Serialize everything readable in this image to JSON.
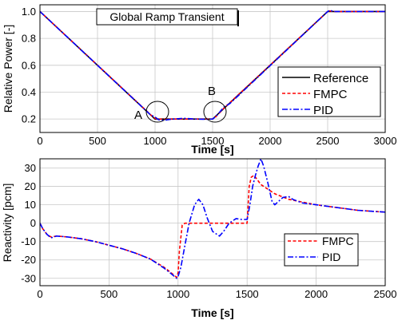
{
  "chart_data": [
    {
      "type": "line",
      "title": "Global Ramp Transient",
      "xlabel": "Time [s]",
      "ylabel": "Relative Power [-]",
      "xlim": [
        0,
        3000
      ],
      "ylim": [
        0.1,
        1.05
      ],
      "xticks": [
        0,
        500,
        1000,
        1500,
        2000,
        2500,
        3000
      ],
      "yticks": [
        0.2,
        0.4,
        0.6,
        0.8,
        1.0
      ],
      "ytick_labels": [
        "0.2",
        "0.4",
        "0.6",
        "0.8",
        "1.0"
      ],
      "grid": true,
      "legend_position": "bottom-right",
      "annotations": [
        {
          "text": "A",
          "x": 1000,
          "y": 0.2
        },
        {
          "text": "B",
          "x": 1500,
          "y": 0.2
        }
      ],
      "series": [
        {
          "name": "Reference",
          "color": "#000000",
          "style": "solid",
          "x": [
            0,
            1000,
            1500,
            2500,
            3000
          ],
          "y": [
            1.0,
            0.2,
            0.2,
            1.0,
            1.0
          ]
        },
        {
          "name": "FMPC",
          "color": "#ff0000",
          "style": "dashed",
          "x": [
            0,
            970,
            1000,
            1030,
            1060,
            1500,
            1520,
            1600,
            2500,
            2520,
            2540,
            3000
          ],
          "y": [
            1.0,
            0.225,
            0.205,
            0.198,
            0.2,
            0.2,
            0.21,
            0.282,
            1.0,
            1.005,
            1.0,
            1.0
          ]
        },
        {
          "name": "PID",
          "color": "#0000ff",
          "style": "dashdot",
          "x": [
            0,
            960,
            1000,
            1030,
            1070,
            1150,
            1250,
            1350,
            1450,
            1500,
            1530,
            1600,
            1650,
            2500,
            2520,
            2550,
            3000
          ],
          "y": [
            1.0,
            0.232,
            0.215,
            0.195,
            0.19,
            0.2,
            0.205,
            0.2,
            0.198,
            0.2,
            0.22,
            0.29,
            0.315,
            1.0,
            1.01,
            1.0,
            1.0
          ]
        }
      ]
    },
    {
      "type": "line",
      "xlabel": "Time [s]",
      "ylabel": "Reactivity [pcm]",
      "xlim": [
        0,
        2500
      ],
      "ylim": [
        -34,
        35
      ],
      "xticks": [
        0,
        500,
        1000,
        1500,
        2000,
        2500
      ],
      "yticks": [
        -30,
        -20,
        -10,
        0,
        10,
        20,
        30
      ],
      "grid": true,
      "legend_position": "bottom-right",
      "series": [
        {
          "name": "FMPC",
          "color": "#ff0000",
          "style": "dashed",
          "x": [
            0,
            20,
            50,
            80,
            120,
            200,
            300,
            400,
            500,
            600,
            700,
            800,
            900,
            950,
            990,
            1000,
            1010,
            1030,
            1050,
            1500,
            1515,
            1530,
            1550,
            1600,
            1700,
            1800,
            1900,
            2000,
            2100,
            2200,
            2300,
            2400,
            2500
          ],
          "y": [
            0,
            -3,
            -6,
            -7.5,
            -7,
            -7.5,
            -8.5,
            -10,
            -12,
            -14,
            -16.5,
            -19.5,
            -24,
            -27,
            -29.5,
            -27,
            -15,
            -1,
            0,
            0,
            20,
            25,
            26,
            21,
            16,
            13,
            11.5,
            10,
            9,
            8,
            7,
            6.5,
            6
          ]
        },
        {
          "name": "PID",
          "color": "#0000ff",
          "style": "dashdot",
          "x": [
            0,
            20,
            50,
            80,
            120,
            200,
            300,
            400,
            500,
            600,
            700,
            800,
            900,
            950,
            990,
            1000,
            1020,
            1040,
            1080,
            1120,
            1150,
            1180,
            1210,
            1250,
            1300,
            1330,
            1370,
            1420,
            1460,
            1500,
            1520,
            1540,
            1560,
            1580,
            1600,
            1620,
            1650,
            1680,
            1700,
            1730,
            1760,
            1800,
            1830,
            1900,
            2000,
            2100,
            2200,
            2300,
            2400,
            2500
          ],
          "y": [
            0,
            -3,
            -6,
            -8,
            -7,
            -7.5,
            -8.5,
            -10,
            -12,
            -14,
            -16.5,
            -19.5,
            -24.5,
            -27.5,
            -30,
            -29,
            -24,
            -16,
            0,
            10,
            13,
            10,
            3,
            -4.5,
            -7,
            -4.5,
            0,
            2.5,
            2,
            2,
            10,
            20,
            26,
            31,
            35,
            31,
            22,
            12,
            10,
            12,
            14,
            14.5,
            13,
            11,
            10,
            9,
            8,
            7,
            6.5,
            6
          ]
        }
      ]
    }
  ]
}
